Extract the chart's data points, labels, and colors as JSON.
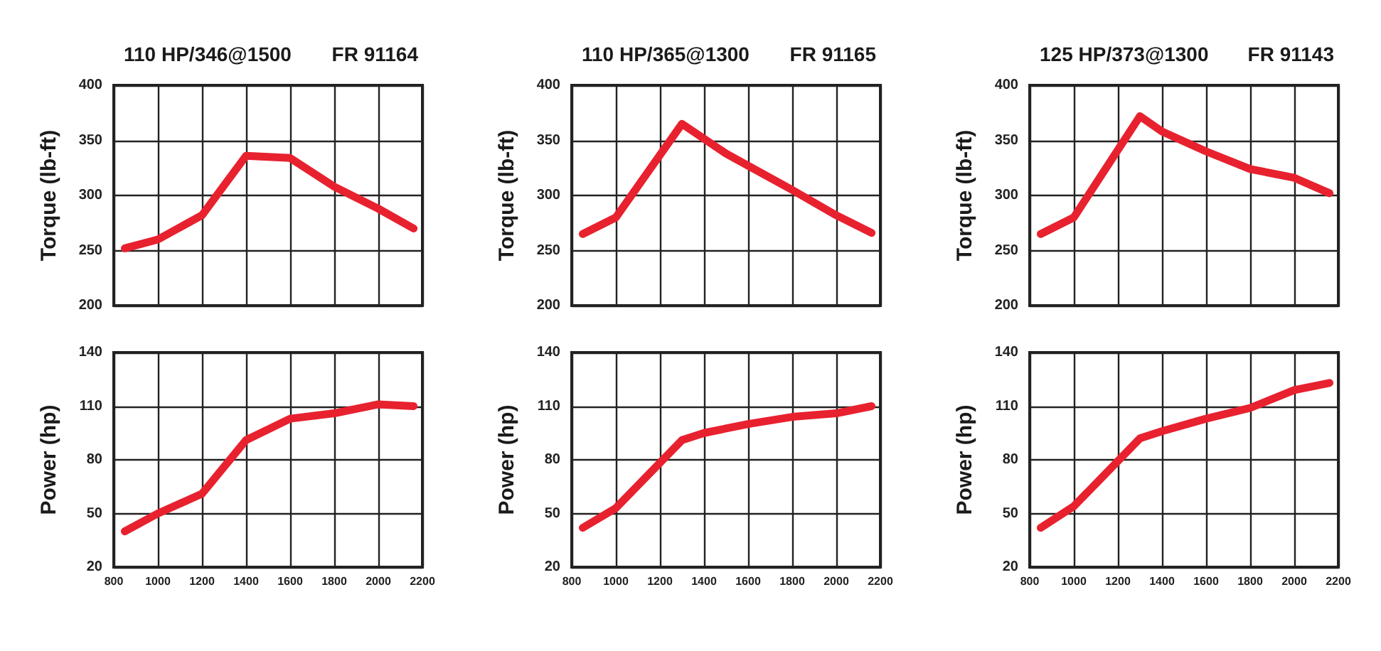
{
  "chart_data": [
    {
      "type": "line",
      "title": "110 HP/346@1500",
      "subtitle": "FR 91164",
      "ylabel": "Torque (lb-ft)",
      "x": [
        850,
        1000,
        1200,
        1400,
        1600,
        1800,
        2000,
        2160
      ],
      "values": [
        252,
        260,
        282,
        336,
        334,
        308,
        288,
        270
      ],
      "color": "#e8212f",
      "xlim": [
        800,
        2200
      ],
      "xticks": [
        800,
        1000,
        1200,
        1400,
        1600,
        1800,
        2000,
        2200
      ],
      "ylim": [
        200,
        400
      ],
      "yticks": [
        200,
        250,
        300,
        350,
        400
      ],
      "grid": true,
      "marker": "none",
      "tick_labels": "y"
    },
    {
      "type": "line",
      "title": "110 HP/365@1300",
      "subtitle": "FR 91165",
      "ylabel": "Torque (lb-ft)",
      "x": [
        850,
        1000,
        1300,
        1500,
        1800,
        2000,
        2160
      ],
      "values": [
        265,
        280,
        365,
        338,
        305,
        282,
        266
      ],
      "color": "#e8212f",
      "xlim": [
        800,
        2200
      ],
      "xticks": [
        800,
        1000,
        1200,
        1400,
        1600,
        1800,
        2000,
        2200
      ],
      "ylim": [
        200,
        400
      ],
      "yticks": [
        200,
        250,
        300,
        350,
        400
      ],
      "grid": true,
      "marker": "none",
      "tick_labels": "y"
    },
    {
      "type": "line",
      "title": "125 HP/373@1300",
      "subtitle": "FR 91143",
      "ylabel": "Torque (lb-ft)",
      "x": [
        850,
        1000,
        1300,
        1400,
        1600,
        1800,
        2000,
        2160
      ],
      "values": [
        265,
        280,
        372,
        358,
        340,
        324,
        316,
        302
      ],
      "color": "#e8212f",
      "xlim": [
        800,
        2200
      ],
      "xticks": [
        800,
        1000,
        1200,
        1400,
        1600,
        1800,
        2000,
        2200
      ],
      "ylim": [
        200,
        400
      ],
      "yticks": [
        200,
        250,
        300,
        350,
        400
      ],
      "grid": true,
      "marker": "none",
      "tick_labels": "y"
    },
    {
      "type": "line",
      "ylabel": "Power (hp)",
      "x": [
        850,
        1000,
        1200,
        1400,
        1600,
        1800,
        2000,
        2160
      ],
      "values": [
        40,
        50,
        61,
        91,
        103,
        106,
        111,
        110
      ],
      "color": "#e8212f",
      "xlim": [
        800,
        2200
      ],
      "xticks": [
        800,
        1000,
        1200,
        1400,
        1600,
        1800,
        2000,
        2200
      ],
      "ylim": [
        20,
        140
      ],
      "yticks": [
        20,
        50,
        80,
        110,
        140
      ],
      "grid": true,
      "marker": "none"
    },
    {
      "type": "line",
      "ylabel": "Power (hp)",
      "x": [
        850,
        1000,
        1300,
        1400,
        1600,
        1800,
        2000,
        2160
      ],
      "values": [
        42,
        53,
        91,
        95,
        100,
        104,
        106,
        110
      ],
      "color": "#e8212f",
      "xlim": [
        800,
        2200
      ],
      "xticks": [
        800,
        1000,
        1200,
        1400,
        1600,
        1800,
        2000,
        2200
      ],
      "ylim": [
        20,
        140
      ],
      "yticks": [
        20,
        50,
        80,
        110,
        140
      ],
      "grid": true,
      "marker": "none"
    },
    {
      "type": "line",
      "ylabel": "Power (hp)",
      "x": [
        850,
        1000,
        1300,
        1400,
        1600,
        1800,
        2000,
        2160
      ],
      "values": [
        42,
        54,
        92,
        96,
        103,
        109,
        119,
        123
      ],
      "color": "#e8212f",
      "xlim": [
        800,
        2200
      ],
      "xticks": [
        800,
        1000,
        1200,
        1400,
        1600,
        1800,
        2000,
        2200
      ],
      "ylim": [
        20,
        140
      ],
      "yticks": [
        20,
        50,
        80,
        110,
        140
      ],
      "grid": true,
      "marker": "none"
    }
  ]
}
